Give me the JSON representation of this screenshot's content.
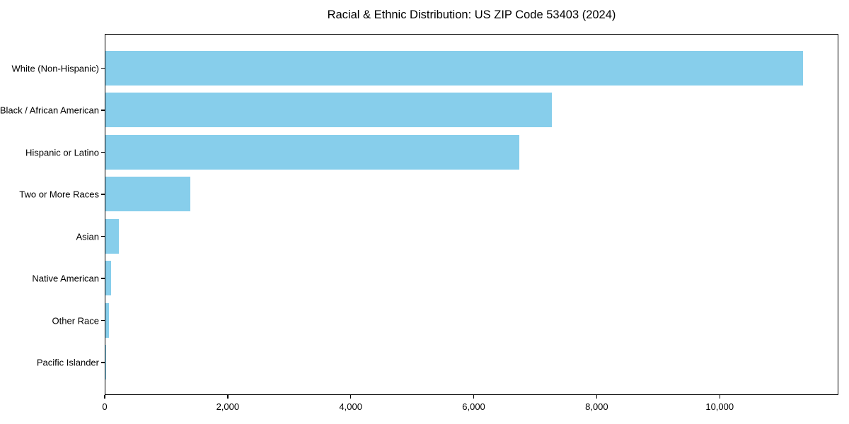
{
  "chart_data": {
    "type": "bar",
    "orientation": "horizontal",
    "title": "Racial & Ethnic Distribution: US ZIP Code 53403 (2024)",
    "categories": [
      "White (Non-Hispanic)",
      "Black / African American",
      "Hispanic or Latino",
      "Two or More Races",
      "Asian",
      "Native American",
      "Other Race",
      "Pacific Islander"
    ],
    "values": [
      11370,
      7280,
      6750,
      1380,
      220,
      90,
      55,
      10
    ],
    "xlabel": "",
    "ylabel": "",
    "xlim": [
      0,
      11930
    ],
    "x_ticks": [
      0,
      2000,
      4000,
      6000,
      8000,
      10000
    ],
    "x_tick_labels": [
      "0",
      "2,000",
      "4,000",
      "6,000",
      "8,000",
      "10,000"
    ],
    "bar_color": "#87CEEB",
    "frame_color": "#000000",
    "text_color": "#000000",
    "grid": false,
    "legend_position": "none"
  }
}
